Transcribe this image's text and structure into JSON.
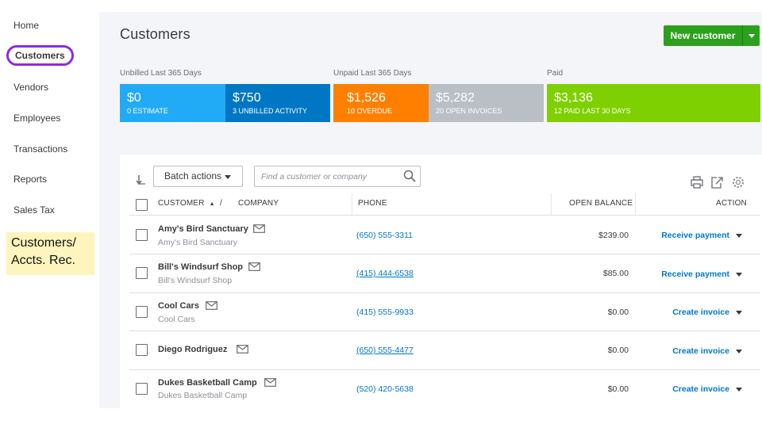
{
  "sidebar": {
    "items": [
      {
        "label": "Home"
      },
      {
        "label": "Customers"
      },
      {
        "label": "Vendors"
      },
      {
        "label": "Employees"
      },
      {
        "label": "Transactions"
      },
      {
        "label": "Reports"
      },
      {
        "label": "Sales Tax"
      }
    ],
    "callout_line1": "Customers/",
    "callout_line2": "Accts. Rec.",
    "active_ring_color": "#8b2be2",
    "callout_color": "#fdf5bd"
  },
  "header": {
    "title": "Customers",
    "new_button": "New customer"
  },
  "money_bar": {
    "unbilled_label": "Unbilled Last 365 Days",
    "unpaid_label": "Unpaid Last 365 Days",
    "paid_label": "Paid",
    "tiles": [
      {
        "amount": "$0",
        "caption": "0 ESTIMATE",
        "color": "#21abf6"
      },
      {
        "amount": "$750",
        "caption": "3 UNBILLED ACTIVITY",
        "color": "#0077c5"
      },
      {
        "amount": "$1,526",
        "caption": "10 OVERDUE",
        "color": "#ff8000"
      },
      {
        "amount": "$5,282",
        "caption": "20 OPEN INVOICES",
        "color": "#babec5"
      },
      {
        "amount": "$3,136",
        "caption": "12 PAID LAST 30 DAYS",
        "color": "#7fd000"
      }
    ]
  },
  "toolbar": {
    "batch_actions": "Batch actions",
    "search_placeholder": "Find a customer or company",
    "icons": [
      "print-icon",
      "export-icon",
      "settings-gear-icon"
    ]
  },
  "table": {
    "headers": {
      "customer": "CUSTOMER",
      "sort_arrow": "▲",
      "slash": "/",
      "company": "COMPANY",
      "phone": "PHONE",
      "open_balance": "OPEN BALANCE",
      "action": "ACTION"
    },
    "rows": [
      {
        "name": "Amy's Bird Sanctuary",
        "company": "Amy's Bird Sanctuary",
        "phone": "(650) 555-3311",
        "balance": "$239.00",
        "action": "Receive payment"
      },
      {
        "name": "Bill's Windsurf Shop",
        "company": "Bill's Windsurf Shop",
        "phone": "(415) 444-6538",
        "balance": "$85.00",
        "action": "Receive payment"
      },
      {
        "name": "Cool Cars",
        "company": "Cool Cars",
        "phone": "(415) 555-9933",
        "balance": "$0.00",
        "action": "Create invoice"
      },
      {
        "name": "Diego Rodriguez",
        "company": "",
        "phone": "(650) 555-4477",
        "balance": "$0.00",
        "action": "Create invoice"
      },
      {
        "name": "Dukes Basketball Camp",
        "company": "Dukes Basketball Camp",
        "phone": "(520) 420-5638",
        "balance": "$0.00",
        "action": "Create invoice"
      }
    ]
  }
}
